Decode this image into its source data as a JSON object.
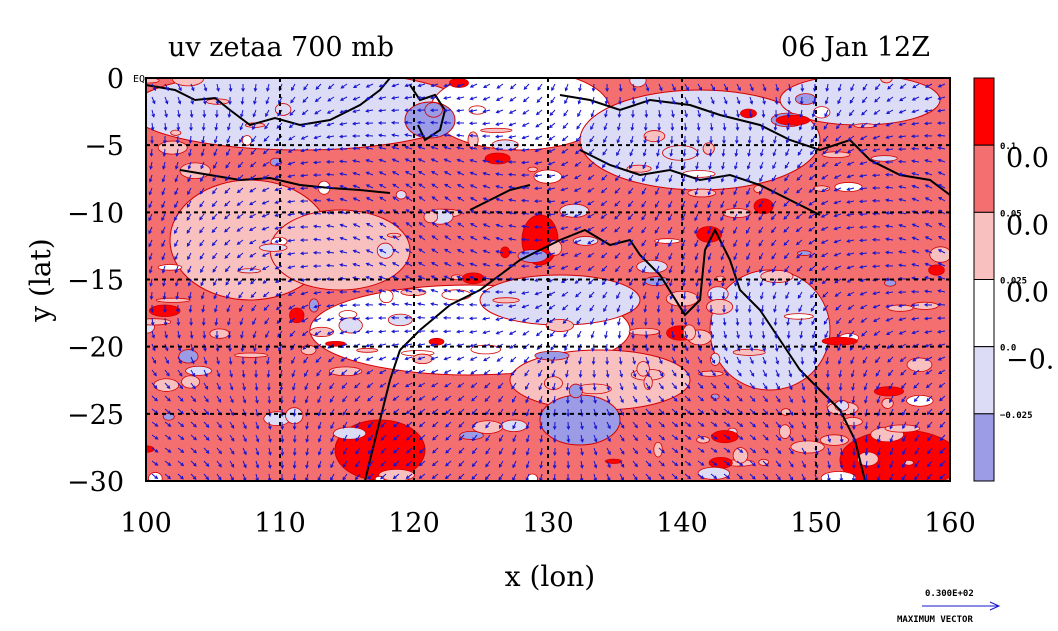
{
  "chart_data": {
    "type": "heatmap",
    "title": "uv zetaa 700 mb",
    "subtitle": "06 Jan 12Z",
    "xlabel": "x (lon)",
    "ylabel": "y (lat)",
    "xlim": [
      100,
      160
    ],
    "ylim": [
      -30,
      0
    ],
    "x_ticks": [
      "100",
      "110",
      "120",
      "130",
      "140",
      "150",
      "160"
    ],
    "x_tick_values": [
      100,
      110,
      120,
      130,
      140,
      150,
      160
    ],
    "y_ticks": [
      "0",
      "−5",
      "−10",
      "−15",
      "−20",
      "−25",
      "−30"
    ],
    "y_tick_values": [
      0,
      -5,
      -10,
      -15,
      -20,
      -25,
      -30
    ],
    "eq_label": "EQ",
    "grid": true,
    "colorbar": {
      "levels": [
        {
          "label": "0.1",
          "color": "#ff0000"
        },
        {
          "label": "0.05",
          "color": "#f47070"
        },
        {
          "label": "0.025",
          "color": "#f9c0c0"
        },
        {
          "label": "0.0",
          "color": "#ffffff"
        },
        {
          "label": "−0.025",
          "color": "#dcdcf6"
        },
        {
          "label": "",
          "color": "#9b9be6"
        }
      ],
      "tick_labels": [
        "0.1",
        "0.05",
        "0.025",
        "0.0",
        "−0.025"
      ],
      "big_labels": [
        "0.0",
        "0.0",
        "0.0",
        "−0."
      ]
    },
    "vector_legend": {
      "value": "0.300E+02",
      "label": "MAXIMUM VECTOR"
    },
    "colors": {
      "strong_pos": "#ff0000",
      "pos": "#f47070",
      "weak_pos": "#f9c0c0",
      "neutral": "#ffffff",
      "weak_neg": "#dcdcf6",
      "neg": "#9b9be6",
      "contour": "#d00000",
      "vector": "#1414d2",
      "coast": "#000000"
    }
  }
}
